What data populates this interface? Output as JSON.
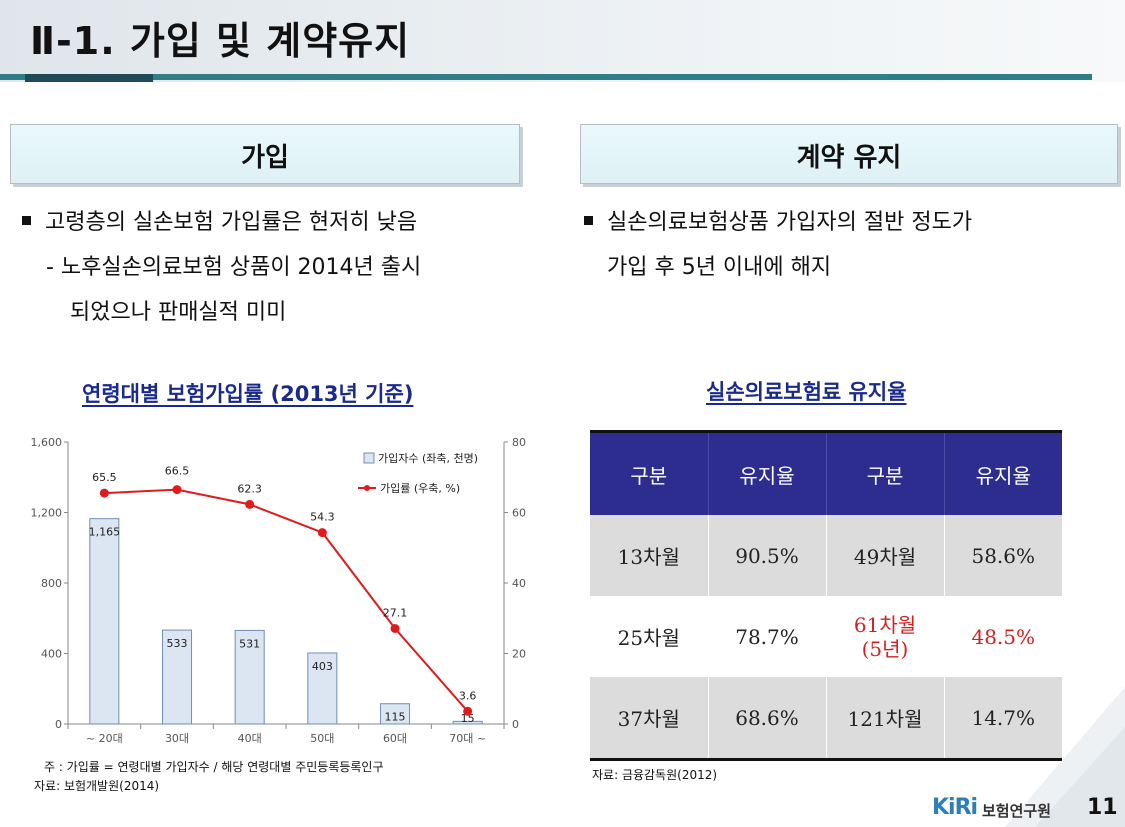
{
  "header": {
    "title": "Ⅱ-1. 가입 및 계약유지"
  },
  "left": {
    "section_label": "가입",
    "bullet1": "고령층의 실손보험 가입률은 현저히 낮음",
    "sub1_line1": "- 노후실손의료보험 상품이 2014년 출시",
    "sub1_line2": "되었으나 판매실적 미미",
    "chart_title": "연령대별 보험가입률 (2013년 기준)",
    "note1": "주 : 가입률 = 연령대별 가입자수 / 해당 연령대별 주민등록등록인구",
    "note2": "자료: 보험개발원(2014)"
  },
  "right": {
    "section_label": "계약 유지",
    "bullet1_line1": "실손의료보험상품 가입자의 절반 정도가",
    "bullet1_line2": "가입 후 5년 이내에 해지",
    "table_title": "실손의료보험료 유지율",
    "table": {
      "headers": [
        "구분",
        "유지율",
        "구분",
        "유지율"
      ],
      "rows": [
        [
          "13차월",
          "90.5%",
          "49차월",
          "58.6%"
        ],
        [
          "25차월",
          "78.7%",
          "61차월",
          "48.5%"
        ],
        [
          "37차월",
          "68.6%",
          "121차월",
          "14.7%"
        ]
      ],
      "row2_col3_sub": "(5년)"
    },
    "source": "자료: 금융감독원(2012)"
  },
  "footer": {
    "logo": "KiRi",
    "org": "보험연구원",
    "page": "11"
  },
  "colors": {
    "accent": "#2f7d86",
    "table_header": "#2c2d8f",
    "line": "#e01b1b",
    "bar_fill": "#dce6f2",
    "highlight": "#d62020"
  },
  "chart_data": {
    "type": "bar",
    "categories": [
      "~ 20대",
      "30대",
      "40대",
      "50대",
      "60대",
      "70대 ~"
    ],
    "series": [
      {
        "name": "가입자수 (좌축, 천명)",
        "type": "bar",
        "axis": "left",
        "values": [
          1165,
          533,
          531,
          403,
          115,
          15
        ],
        "labels": [
          "1,165",
          "533",
          "531",
          "403",
          "115",
          "15"
        ]
      },
      {
        "name": "가입률 (우축, %)",
        "type": "line",
        "axis": "right",
        "values": [
          65.5,
          66.5,
          62.3,
          54.3,
          27.1,
          3.6
        ],
        "labels": [
          "65.5",
          "66.5",
          "62.3",
          "54.3",
          "27.1",
          "3.6"
        ]
      }
    ],
    "y_left": {
      "min": 0,
      "max": 1600,
      "ticks": [
        0,
        400,
        800,
        1200,
        1600
      ],
      "tick_labels": [
        "0",
        "400",
        "800",
        "1,200",
        "1,600"
      ]
    },
    "y_right": {
      "min": 0,
      "max": 80,
      "ticks": [
        0,
        20,
        40,
        60,
        80
      ],
      "tick_labels": [
        "0",
        "20",
        "40",
        "60",
        "80"
      ]
    },
    "legend": "top-right"
  }
}
